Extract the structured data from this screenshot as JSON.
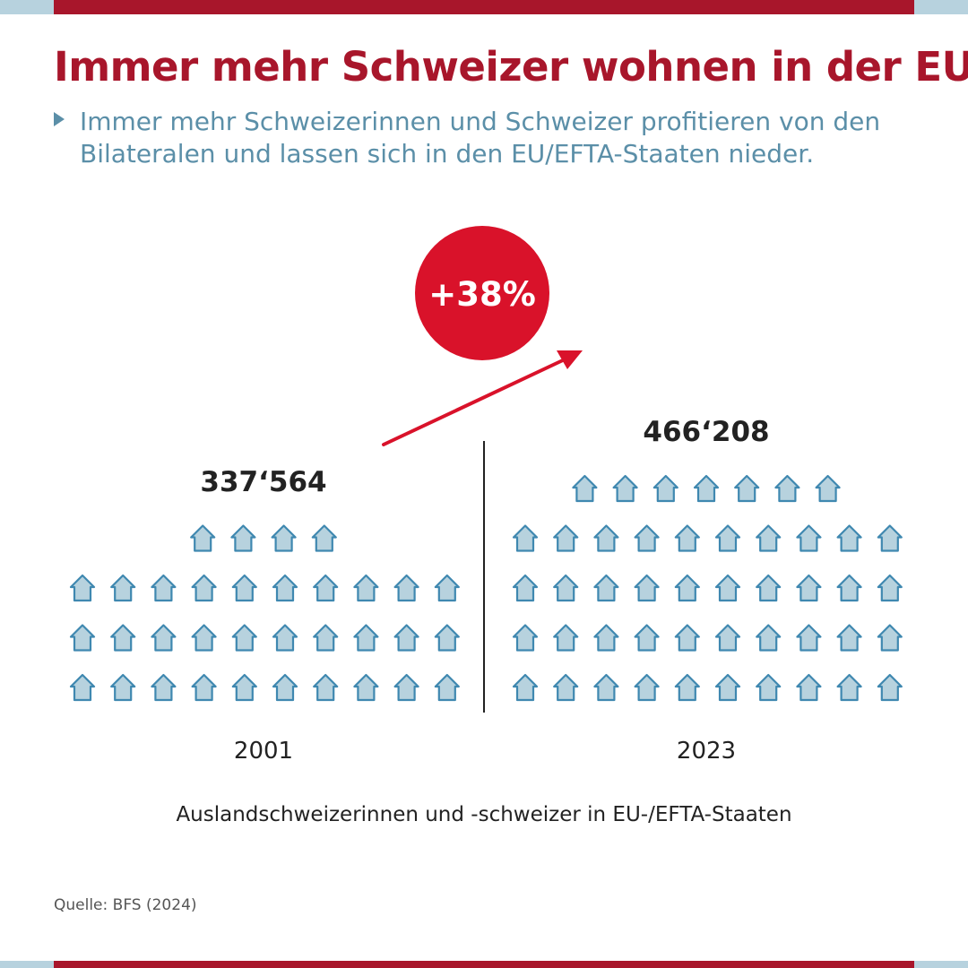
{
  "header": {
    "title": "Immer mehr Schweizer wohnen in der EU",
    "subtitle": "Immer mehr Schweizerinnen und Schweizer profitieren von den Bilateralen und lassen sich in den EU/EFTA-Staaten nieder."
  },
  "colors": {
    "brand_red": "#a8162b",
    "badge_red": "#d9122a",
    "accent_blue": "#5b8fa8",
    "house_fill": "#b7d2de",
    "house_stroke": "#3f88b0"
  },
  "chart_data": {
    "type": "pictogram",
    "icon": "house-icon",
    "categories": [
      "2001",
      "2023"
    ],
    "values": [
      337564,
      466208
    ],
    "value_labels": [
      "337‘564",
      "466‘208"
    ],
    "icon_counts": [
      34,
      47
    ],
    "change_label": "+38%",
    "caption": "Auslandschweizerinnen und -schweizer in EU-/EFTA-Staaten"
  },
  "footer": {
    "source": "Quelle: BFS (2024)"
  }
}
